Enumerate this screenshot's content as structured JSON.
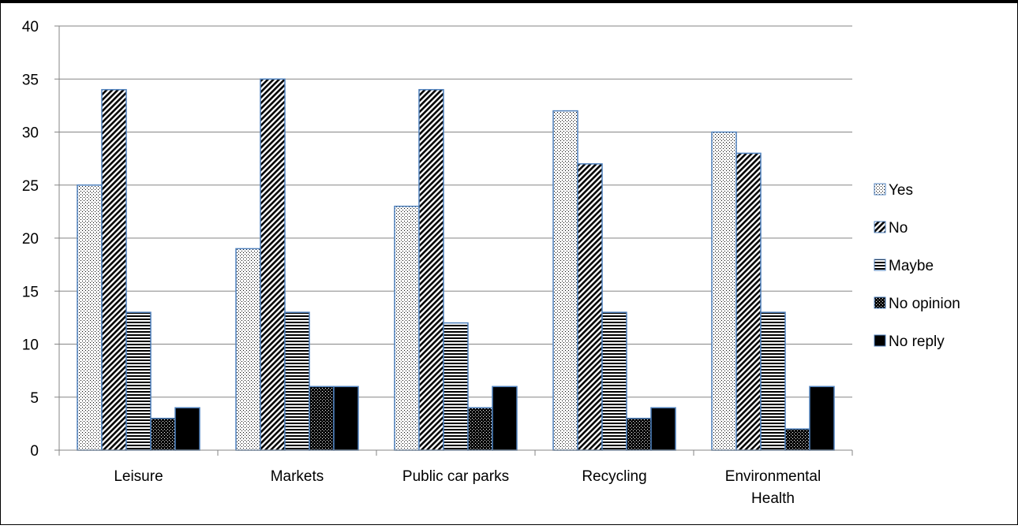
{
  "chart_data": {
    "type": "bar",
    "title": "",
    "xlabel": "",
    "ylabel": "",
    "categories": [
      [
        "Leisure"
      ],
      [
        "Markets"
      ],
      [
        "Public car parks"
      ],
      [
        "Recycling"
      ],
      [
        "Environmental",
        "Health"
      ]
    ],
    "series": [
      {
        "name": "Yes",
        "pattern": "dots",
        "values": [
          25,
          19,
          23,
          32,
          30
        ]
      },
      {
        "name": "No",
        "pattern": "diagonal",
        "values": [
          34,
          35,
          34,
          27,
          28
        ]
      },
      {
        "name": "Maybe",
        "pattern": "horizontal",
        "values": [
          13,
          13,
          12,
          13,
          13
        ]
      },
      {
        "name": "No opinion",
        "pattern": "checker",
        "values": [
          3,
          6,
          4,
          3,
          2
        ]
      },
      {
        "name": "No reply",
        "pattern": "solid",
        "values": [
          4,
          6,
          6,
          4,
          6
        ]
      }
    ],
    "ylim": [
      0,
      40
    ],
    "yticks": [
      0,
      5,
      10,
      15,
      20,
      25,
      30,
      35,
      40
    ],
    "grid": true,
    "legend": "right",
    "colors": {
      "bar_edge": "#4f81bd",
      "grid": "#868686",
      "ink": "#000000"
    }
  }
}
